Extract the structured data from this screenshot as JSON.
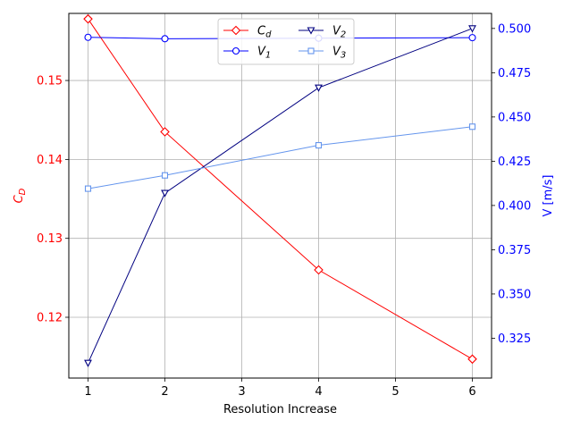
{
  "chart_data": {
    "type": "line",
    "title": "",
    "xlabel": "Resolution Increase",
    "ylabel_left": "C_D",
    "ylabel_right": "V [m/s]",
    "x": [
      1,
      2,
      4,
      6
    ],
    "xlim": [
      0.75,
      6.25
    ],
    "xticks": [
      1,
      2,
      3,
      4,
      5,
      6
    ],
    "ylim_left": [
      0.1123,
      0.1585
    ],
    "yticks_left": [
      0.12,
      0.13,
      0.14,
      0.15
    ],
    "ylim_right": [
      0.3025,
      0.5085
    ],
    "yticks_right": [
      0.325,
      0.35,
      0.375,
      0.4,
      0.425,
      0.45,
      0.475,
      0.5
    ],
    "grid": true,
    "legend_position": "top-center",
    "left_axis_color": "#ff0000",
    "right_axis_color": "#0000ff",
    "series": [
      {
        "name": "C_d",
        "axis": "left",
        "color": "#ff0000",
        "marker": "diamond",
        "values": [
          0.1578,
          0.1435,
          0.126,
          0.1147
        ]
      },
      {
        "name": "V_1",
        "axis": "right",
        "color": "#0000ff",
        "marker": "circle",
        "values": [
          0.495,
          0.4942,
          0.4945,
          0.4948
        ]
      },
      {
        "name": "V_2",
        "axis": "right",
        "color": "#000080",
        "marker": "triangle-down",
        "values": [
          0.311,
          0.407,
          0.4665,
          0.5
        ]
      },
      {
        "name": "V_3",
        "axis": "right",
        "color": "#6495ed",
        "marker": "square",
        "values": [
          0.4095,
          0.417,
          0.434,
          0.4445
        ]
      }
    ]
  }
}
